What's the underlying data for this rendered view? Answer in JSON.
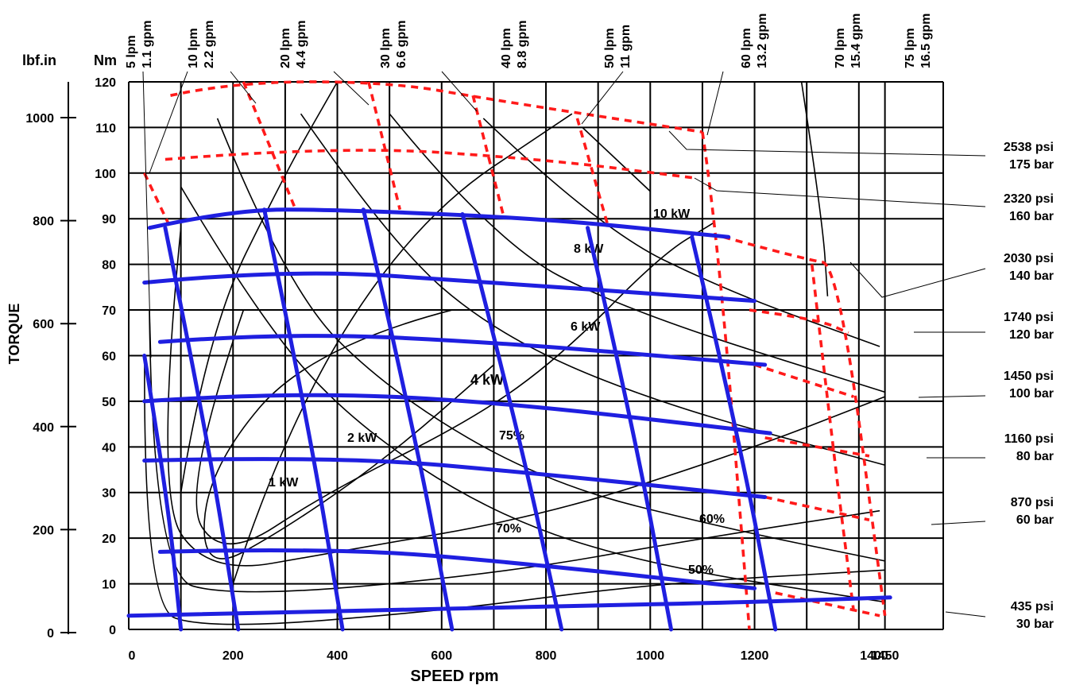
{
  "chart_data": {
    "type": "line",
    "xlabel": "SPEED rpm",
    "ylabel": "TORQUE",
    "y_unit_left_outer": "lbf.in",
    "y_unit_left_inner": "Nm",
    "x_ticks": [
      "0",
      "200",
      "400",
      "600",
      "800",
      "1000",
      "1200",
      "1400",
      "1450"
    ],
    "y_ticks_nm": [
      "0",
      "10",
      "20",
      "30",
      "40",
      "50",
      "60",
      "70",
      "80",
      "90",
      "100",
      "110",
      "120"
    ],
    "y_ticks_lbfin": [
      "0",
      "200",
      "400",
      "600",
      "800",
      "1000"
    ],
    "xlim": [
      0,
      1450
    ],
    "ylim_nm": [
      0,
      120
    ],
    "flow_labels": [
      {
        "lpm": "5 lpm",
        "gpm": "1.1 gpm"
      },
      {
        "lpm": "10 lpm",
        "gpm": "2.2 gpm"
      },
      {
        "lpm": "20 lpm",
        "gpm": "4.4 gpm"
      },
      {
        "lpm": "30 lpm",
        "gpm": "6.6 gpm"
      },
      {
        "lpm": "40 lpm",
        "gpm": "8.8 gpm"
      },
      {
        "lpm": "50 lpm",
        "gpm": "11 gpm"
      },
      {
        "lpm": "60 lpm",
        "gpm": "13.2 gpm"
      },
      {
        "lpm": "70 lpm",
        "gpm": "15.4 gpm"
      },
      {
        "lpm": "75 lpm",
        "gpm": "16.5 gpm"
      }
    ],
    "pressure_labels": [
      {
        "psi": "2538 psi",
        "bar": "175 bar"
      },
      {
        "psi": "2320 psi",
        "bar": "160 bar"
      },
      {
        "psi": "2030 psi",
        "bar": "140 bar"
      },
      {
        "psi": "1740 psi",
        "bar": "120 bar"
      },
      {
        "psi": "1450 psi",
        "bar": "100 bar"
      },
      {
        "psi": "1160 psi",
        "bar": "80 bar"
      },
      {
        "psi": "870 psi",
        "bar": "60 bar"
      },
      {
        "psi": "435 psi",
        "bar": "30 bar"
      }
    ],
    "power_labels": [
      "1 kW",
      "2 kW",
      "4 kW",
      "6 kW",
      "8 kW",
      "10 kW"
    ],
    "efficiency_labels": [
      "75%",
      "70%",
      "60%",
      "50%"
    ],
    "pressure_lines_nm": {
      "series": [
        {
          "name": "30 bar",
          "points": [
            [
              0,
              3
            ],
            [
              400,
              4
            ],
            [
              800,
              5
            ],
            [
              1200,
              6
            ],
            [
              1460,
              7
            ]
          ]
        },
        {
          "name": "60 bar",
          "points": [
            [
              60,
              17
            ],
            [
              400,
              18
            ],
            [
              800,
              14
            ],
            [
              1200,
              9
            ]
          ]
        },
        {
          "name": "80 bar",
          "points": [
            [
              30,
              37
            ],
            [
              400,
              38
            ],
            [
              800,
              34
            ],
            [
              1220,
              29
            ]
          ]
        },
        {
          "name": "100 bar",
          "points": [
            [
              30,
              50
            ],
            [
              300,
              52
            ],
            [
              700,
              50
            ],
            [
              1230,
              43
            ]
          ]
        },
        {
          "name": "120 bar",
          "points": [
            [
              60,
              63
            ],
            [
              300,
              65
            ],
            [
              700,
              63
            ],
            [
              1220,
              58
            ]
          ]
        },
        {
          "name": "140 bar",
          "points": [
            [
              30,
              76
            ],
            [
              300,
              79
            ],
            [
              700,
              76
            ],
            [
              1200,
              72
            ]
          ]
        },
        {
          "name": "160 bar",
          "points": [
            [
              40,
              88
            ],
            [
              200,
              92
            ],
            [
              400,
              92
            ],
            [
              800,
              90
            ],
            [
              1150,
              86
            ]
          ]
        }
      ]
    },
    "flow_lines_rpm": {
      "series": [
        {
          "name": "5 lpm",
          "points": [
            [
              30,
              60
            ],
            [
              100,
              0
            ]
          ]
        },
        {
          "name": "10 lpm",
          "points": [
            [
              70,
              88
            ],
            [
              210,
              0
            ]
          ]
        },
        {
          "name": "20 lpm",
          "points": [
            [
              260,
              92
            ],
            [
              410,
              0
            ]
          ]
        },
        {
          "name": "30 lpm",
          "points": [
            [
              450,
              92
            ],
            [
              620,
              0
            ]
          ]
        },
        {
          "name": "40 lpm",
          "points": [
            [
              640,
              91
            ],
            [
              830,
              0
            ]
          ]
        },
        {
          "name": "50 lpm",
          "points": [
            [
              880,
              88
            ],
            [
              1040,
              0
            ]
          ]
        },
        {
          "name": "60 lpm",
          "points": [
            [
              1080,
              86
            ],
            [
              1240,
              0
            ]
          ]
        }
      ]
    }
  }
}
